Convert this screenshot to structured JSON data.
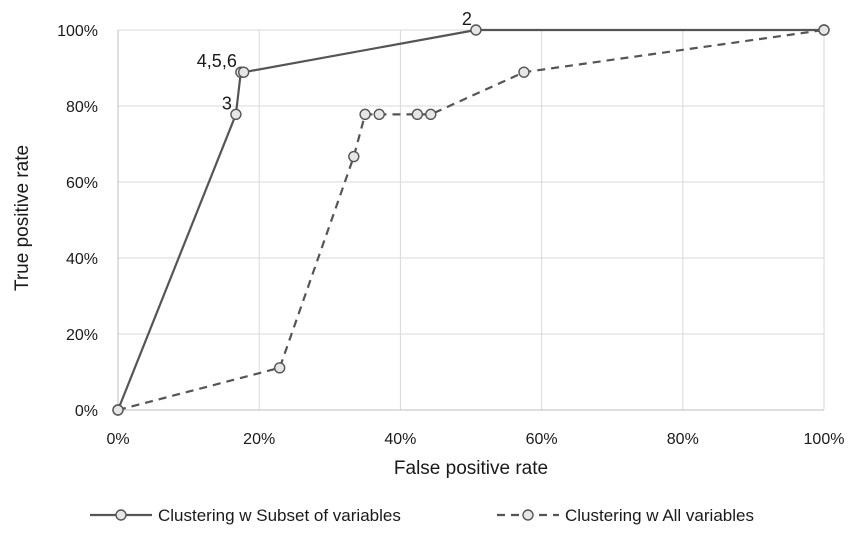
{
  "chart_data": {
    "type": "line",
    "title": "",
    "xlabel": "False positive rate",
    "ylabel": "True positive rate",
    "xlim": [
      0,
      1
    ],
    "ylim": [
      0,
      1
    ],
    "x_ticks": [
      0,
      0.2,
      0.4,
      0.6,
      0.8,
      1.0
    ],
    "y_ticks": [
      0,
      0.2,
      0.4,
      0.6,
      0.8,
      1.0
    ],
    "x_tick_labels": [
      "0%",
      "20%",
      "40%",
      "60%",
      "80%",
      "100%"
    ],
    "y_tick_labels": [
      "0%",
      "20%",
      "40%",
      "60%",
      "80%",
      "100%"
    ],
    "grid": true,
    "legend_position": "bottom",
    "series": [
      {
        "name": "Clustering w Subset of variables",
        "line_style": "solid",
        "color": "#555555",
        "x": [
          0.0,
          0.167,
          0.174,
          0.178,
          0.507,
          1.0
        ],
        "y": [
          0.0,
          0.778,
          0.889,
          0.889,
          1.0,
          1.0
        ],
        "point_labels": [
          "",
          "3",
          "4,5,6",
          "",
          "2",
          ""
        ]
      },
      {
        "name": "Clustering w All variables",
        "line_style": "dashed",
        "color": "#555555",
        "x": [
          0.0,
          0.229,
          0.334,
          0.35,
          0.37,
          0.424,
          0.443,
          0.575,
          1.0
        ],
        "y": [
          0.0,
          0.111,
          0.667,
          0.778,
          0.778,
          0.778,
          0.778,
          0.889,
          1.0
        ],
        "point_labels": [
          "",
          "",
          "",
          "",
          "",
          "",
          "",
          "",
          ""
        ]
      }
    ]
  }
}
